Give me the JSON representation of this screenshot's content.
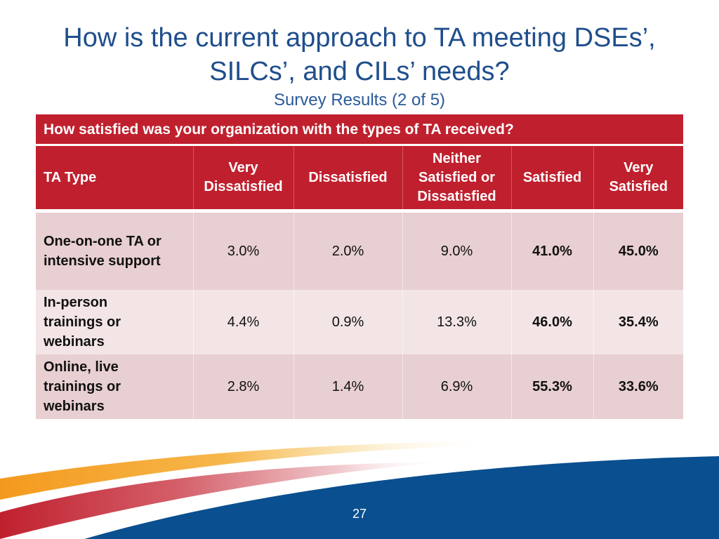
{
  "slide": {
    "title_line1": "How is the current approach to TA meeting DSEs’,",
    "title_line2": "SILCs’, and CILs’ needs?",
    "subtitle": "Survey Results (2 of 5)",
    "page_number": "27"
  },
  "table": {
    "question": "How satisfied was your organization with the types of TA received?",
    "headers": {
      "ta_type": "TA Type",
      "very_dissatisfied_1": "Very",
      "very_dissatisfied_2": "Dissatisfied",
      "dissatisfied": "Dissatisfied",
      "neither_1": "Neither",
      "neither_2": "Satisfied or",
      "neither_3": "Dissatisfied",
      "satisfied": "Satisfied",
      "very_satisfied_1": "Very",
      "very_satisfied_2": "Satisfied"
    },
    "rows": [
      {
        "label_1": "One-on-one TA or",
        "label_2": "intensive support",
        "label_3": "",
        "very_dissatisfied": "3.0%",
        "dissatisfied": "2.0%",
        "neither": "9.0%",
        "satisfied": "41.0%",
        "very_satisfied": "45.0%"
      },
      {
        "label_1": "In-person",
        "label_2": "trainings or",
        "label_3": "webinars",
        "very_dissatisfied": "4.4%",
        "dissatisfied": "0.9%",
        "neither": "13.3%",
        "satisfied": "46.0%",
        "very_satisfied": "35.4%"
      },
      {
        "label_1": "Online, live",
        "label_2": "trainings or",
        "label_3": "webinars",
        "very_dissatisfied": "2.8%",
        "dissatisfied": "1.4%",
        "neither": "6.9%",
        "satisfied": "55.3%",
        "very_satisfied": "33.6%"
      }
    ]
  },
  "colors": {
    "header_red": "#c0202e",
    "title_blue": "#1f4e8c",
    "row_dark": "#e8cfd1",
    "row_light": "#f3e5e6",
    "swoosh_blue": "#0a4f8f",
    "swoosh_orange": "#f5a623"
  }
}
